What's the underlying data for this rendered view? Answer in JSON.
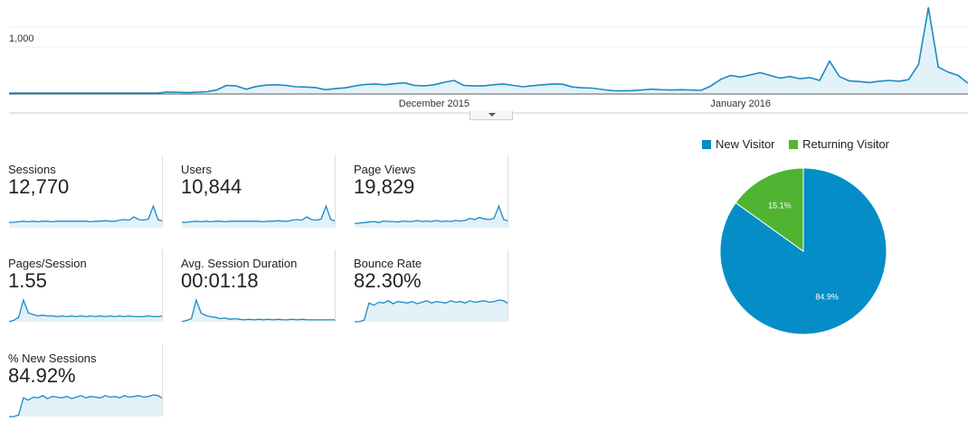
{
  "chart_data": [
    {
      "type": "area",
      "name": "sessions-overview",
      "y_tick_labels": [
        "1,000"
      ],
      "y_tick_values": [
        1000
      ],
      "ylim": [
        0,
        1500
      ],
      "x_tick_labels": [
        "December 2015",
        "January 2016"
      ],
      "x_tick_positions": [
        43,
        74
      ],
      "grid": true,
      "color": "#1a8cc2",
      "fill": "#e3f1f8",
      "values": [
        0,
        0,
        0,
        0,
        0,
        0,
        0,
        0,
        0,
        0,
        0,
        0,
        0,
        0,
        0,
        0,
        20,
        15,
        10,
        15,
        25,
        55,
        140,
        130,
        70,
        120,
        145,
        150,
        140,
        115,
        110,
        100,
        60,
        80,
        95,
        130,
        155,
        165,
        150,
        170,
        185,
        140,
        130,
        150,
        195,
        230,
        140,
        130,
        130,
        150,
        165,
        140,
        115,
        135,
        150,
        165,
        160,
        110,
        95,
        90,
        65,
        45,
        40,
        45,
        55,
        70,
        60,
        55,
        60,
        55,
        50,
        130,
        250,
        320,
        290,
        330,
        370,
        320,
        270,
        300,
        260,
        280,
        230,
        580,
        300,
        220,
        210,
        190,
        215,
        230,
        215,
        245,
        520,
        1550,
        470,
        380,
        320,
        180
      ]
    },
    {
      "type": "pie",
      "name": "visitor-type",
      "legend_position": "top",
      "series": [
        {
          "name": "New Visitor",
          "value": 84.9,
          "label": "84.9%",
          "color": "#058dc7"
        },
        {
          "name": "Returning Visitor",
          "value": 15.1,
          "label": "15.1%",
          "color": "#50b432"
        }
      ]
    }
  ],
  "metrics": [
    {
      "title": "Sessions",
      "value": "12,770",
      "spark": [
        10,
        10,
        11,
        12,
        11,
        12,
        11,
        12,
        12,
        11,
        12,
        12,
        12,
        12,
        12,
        12,
        12,
        11,
        12,
        12,
        13,
        12,
        12,
        14,
        15,
        14,
        20,
        15,
        14,
        16,
        40,
        15,
        12
      ]
    },
    {
      "title": "Users",
      "value": "10,844",
      "spark": [
        10,
        10,
        11,
        12,
        11,
        12,
        11,
        12,
        12,
        11,
        12,
        12,
        12,
        12,
        12,
        12,
        12,
        11,
        12,
        12,
        13,
        12,
        12,
        14,
        15,
        14,
        20,
        15,
        14,
        16,
        40,
        15,
        12
      ]
    },
    {
      "title": "Page Views",
      "value": "19,829",
      "spark": [
        8,
        9,
        10,
        11,
        12,
        10,
        13,
        12,
        12,
        11,
        13,
        12,
        12,
        14,
        12,
        13,
        12,
        14,
        12,
        13,
        12,
        14,
        13,
        14,
        18,
        16,
        20,
        17,
        16,
        18,
        42,
        16,
        13
      ]
    },
    {
      "title": "Pages/Session",
      "value": "1.55",
      "spark": [
        0,
        2,
        6,
        30,
        12,
        10,
        8,
        9,
        8,
        8,
        7,
        8,
        7,
        8,
        7,
        8,
        7,
        8,
        7,
        8,
        7,
        8,
        7,
        8,
        7,
        8,
        7,
        7,
        7,
        8,
        7,
        7,
        8
      ]
    },
    {
      "title": "Avg. Session Duration",
      "value": "00:01:18",
      "spark": [
        0,
        2,
        5,
        35,
        14,
        10,
        8,
        7,
        5,
        6,
        4,
        5,
        4,
        3,
        4,
        3,
        4,
        3,
        4,
        3,
        4,
        3,
        3,
        4,
        3,
        4,
        3,
        3,
        3,
        3,
        3,
        3,
        3
      ]
    },
    {
      "title": "Bounce Rate",
      "value": "82.30%",
      "spark": [
        0,
        0,
        2,
        25,
        22,
        26,
        25,
        28,
        24,
        27,
        26,
        25,
        27,
        24,
        26,
        28,
        25,
        27,
        26,
        25,
        28,
        26,
        27,
        25,
        28,
        26,
        27,
        28,
        26,
        27,
        29,
        28,
        24
      ]
    },
    {
      "title": "% New Sessions",
      "value": "84.92%",
      "spark": [
        0,
        0,
        2,
        25,
        22,
        26,
        25,
        28,
        24,
        27,
        26,
        25,
        27,
        24,
        26,
        28,
        25,
        27,
        26,
        25,
        28,
        26,
        27,
        25,
        28,
        26,
        27,
        28,
        26,
        27,
        29,
        28,
        24
      ]
    }
  ],
  "colors": {
    "line": "#1a8cc2",
    "area": "#e3f1f8",
    "grid": "#eeeeee",
    "axis": "#555555"
  }
}
